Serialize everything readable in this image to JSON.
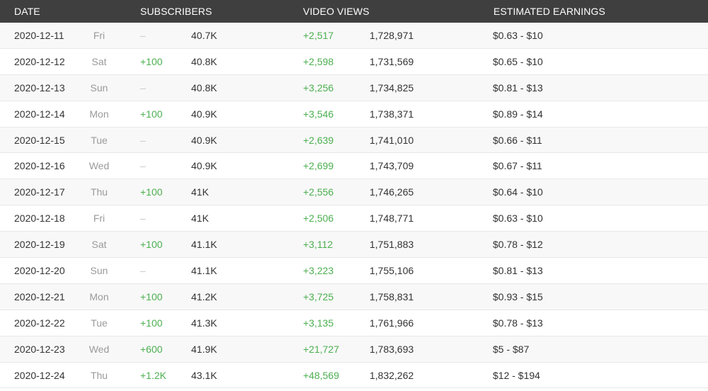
{
  "header": {
    "date": "DATE",
    "subscribers": "SUBSCRIBERS",
    "video_views": "VIDEO VIEWS",
    "earnings": "ESTIMATED EARNINGS"
  },
  "rows": [
    {
      "date": "2020-12-11",
      "day": "Fri",
      "sub_delta": "–",
      "sub_total": "40.7K",
      "view_delta": "+2,517",
      "view_total": "1,728,971",
      "earnings": "$0.63  -  $10"
    },
    {
      "date": "2020-12-12",
      "day": "Sat",
      "sub_delta": "+100",
      "sub_total": "40.8K",
      "view_delta": "+2,598",
      "view_total": "1,731,569",
      "earnings": "$0.65  -  $10"
    },
    {
      "date": "2020-12-13",
      "day": "Sun",
      "sub_delta": "–",
      "sub_total": "40.8K",
      "view_delta": "+3,256",
      "view_total": "1,734,825",
      "earnings": "$0.81  -  $13"
    },
    {
      "date": "2020-12-14",
      "day": "Mon",
      "sub_delta": "+100",
      "sub_total": "40.9K",
      "view_delta": "+3,546",
      "view_total": "1,738,371",
      "earnings": "$0.89  -  $14"
    },
    {
      "date": "2020-12-15",
      "day": "Tue",
      "sub_delta": "–",
      "sub_total": "40.9K",
      "view_delta": "+2,639",
      "view_total": "1,741,010",
      "earnings": "$0.66  -  $11"
    },
    {
      "date": "2020-12-16",
      "day": "Wed",
      "sub_delta": "–",
      "sub_total": "40.9K",
      "view_delta": "+2,699",
      "view_total": "1,743,709",
      "earnings": "$0.67  -  $11"
    },
    {
      "date": "2020-12-17",
      "day": "Thu",
      "sub_delta": "+100",
      "sub_total": "41K",
      "view_delta": "+2,556",
      "view_total": "1,746,265",
      "earnings": "$0.64  -  $10"
    },
    {
      "date": "2020-12-18",
      "day": "Fri",
      "sub_delta": "–",
      "sub_total": "41K",
      "view_delta": "+2,506",
      "view_total": "1,748,771",
      "earnings": "$0.63  -  $10"
    },
    {
      "date": "2020-12-19",
      "day": "Sat",
      "sub_delta": "+100",
      "sub_total": "41.1K",
      "view_delta": "+3,112",
      "view_total": "1,751,883",
      "earnings": "$0.78  -  $12"
    },
    {
      "date": "2020-12-20",
      "day": "Sun",
      "sub_delta": "–",
      "sub_total": "41.1K",
      "view_delta": "+3,223",
      "view_total": "1,755,106",
      "earnings": "$0.81  -  $13"
    },
    {
      "date": "2020-12-21",
      "day": "Mon",
      "sub_delta": "+100",
      "sub_total": "41.2K",
      "view_delta": "+3,725",
      "view_total": "1,758,831",
      "earnings": "$0.93  -  $15"
    },
    {
      "date": "2020-12-22",
      "day": "Tue",
      "sub_delta": "+100",
      "sub_total": "41.3K",
      "view_delta": "+3,135",
      "view_total": "1,761,966",
      "earnings": "$0.78  -  $13"
    },
    {
      "date": "2020-12-23",
      "day": "Wed",
      "sub_delta": "+600",
      "sub_total": "41.9K",
      "view_delta": "+21,727",
      "view_total": "1,783,693",
      "earnings": "$5  -  $87"
    },
    {
      "date": "2020-12-24",
      "day": "Thu",
      "sub_delta": "+1.2K",
      "sub_total": "43.1K",
      "view_delta": "+48,569",
      "view_total": "1,832,262",
      "earnings": "$12  -  $194"
    }
  ]
}
